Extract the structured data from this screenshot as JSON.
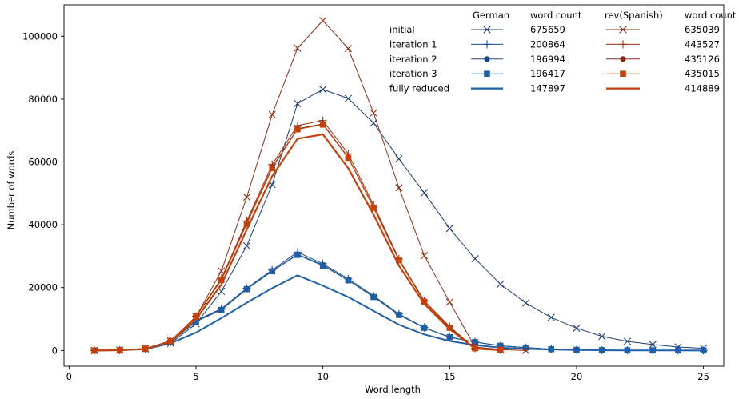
{
  "chart_data": {
    "type": "line",
    "xlabel": "Word length",
    "ylabel": "Number of words",
    "xlim": [
      -0.2,
      25.8
    ],
    "ylim": [
      -5000,
      110000
    ],
    "xticks": [
      0,
      5,
      10,
      15,
      20,
      25
    ],
    "yticks": [
      0,
      20000,
      40000,
      60000,
      80000,
      100000
    ],
    "grid": false,
    "legend": {
      "placement": "top-right",
      "headers": [
        "German",
        "word count",
        "rev(Spanish)",
        "word count"
      ],
      "rows": [
        {
          "label": "initial",
          "german_count": "675659",
          "spanish_count": "635039",
          "marker": "x"
        },
        {
          "label": "iteration 1",
          "german_count": "200864",
          "spanish_count": "443527",
          "marker": "plus"
        },
        {
          "label": "iteration 2",
          "german_count": "196994",
          "spanish_count": "435126",
          "marker": "circle"
        },
        {
          "label": "iteration 3",
          "german_count": "196417",
          "spanish_count": "435015",
          "marker": "square"
        },
        {
          "label": "fully reduced",
          "german_count": "147897",
          "spanish_count": "414889",
          "marker": "none"
        }
      ]
    },
    "colors": {
      "german_initial": "#1f3f6e",
      "german_iter1": "#1f4b85",
      "german_iter2": "#1a4a80",
      "german_iter3": "#1f5fa8",
      "german_full": "#1f5fa8",
      "spanish_initial": "#8b2e12",
      "spanish_iter1": "#9a3412",
      "spanish_iter2": "#8b2a10",
      "spanish_iter3": "#c2410c",
      "spanish_full": "#c2410c"
    },
    "series": [
      {
        "key": "german_initial",
        "marker": "x",
        "width": 1.0,
        "x": [
          1,
          2,
          3,
          4,
          5,
          6,
          7,
          8,
          9,
          10,
          11,
          12,
          13,
          14,
          15,
          16,
          17,
          18,
          19,
          20,
          21,
          22,
          23,
          24,
          25
        ],
        "y": [
          0,
          100,
          500,
          2300,
          8500,
          18800,
          33300,
          52800,
          78600,
          83100,
          80200,
          72400,
          61000,
          50200,
          38800,
          29200,
          21100,
          15100,
          10500,
          7100,
          4500,
          2900,
          1900,
          1100,
          700
        ]
      },
      {
        "key": "german_iter1",
        "marker": "plus",
        "width": 1.0,
        "x": [
          1,
          2,
          3,
          4,
          5,
          6,
          7,
          8,
          9,
          10,
          11,
          12,
          13,
          14,
          15,
          16,
          17,
          18,
          19,
          20,
          21,
          22,
          23,
          24,
          25
        ],
        "y": [
          0,
          100,
          500,
          2700,
          9500,
          13300,
          19800,
          25600,
          31300,
          27600,
          22800,
          17400,
          11600,
          7300,
          4300,
          2700,
          1500,
          900,
          400,
          200,
          100,
          50,
          30,
          20,
          10
        ]
      },
      {
        "key": "german_iter2",
        "marker": "circle",
        "width": 1.0,
        "x": [
          1,
          2,
          3,
          4,
          5,
          6,
          7,
          8,
          9,
          10,
          11,
          12,
          13,
          14,
          15,
          16,
          17,
          18,
          19,
          20,
          21,
          22,
          23,
          24,
          25
        ],
        "y": [
          0,
          100,
          500,
          2700,
          9300,
          13000,
          19600,
          25300,
          30600,
          27200,
          22400,
          17100,
          11400,
          7200,
          4200,
          2700,
          1500,
          900,
          400,
          200,
          100,
          50,
          30,
          20,
          10
        ]
      },
      {
        "key": "german_iter3",
        "marker": "square",
        "width": 1.0,
        "x": [
          1,
          2,
          3,
          4,
          5,
          6,
          7,
          8,
          9,
          10,
          11,
          12,
          13,
          14,
          15,
          16,
          17,
          18,
          19,
          20,
          21,
          22,
          23,
          24,
          25
        ],
        "y": [
          0,
          100,
          500,
          2700,
          9200,
          12900,
          19500,
          25200,
          30400,
          27000,
          22300,
          17000,
          11300,
          7200,
          4200,
          2700,
          1500,
          900,
          400,
          200,
          100,
          50,
          30,
          20,
          10
        ]
      },
      {
        "key": "german_full",
        "marker": "none",
        "width": 2.0,
        "x": [
          1,
          2,
          3,
          4,
          5,
          6,
          7,
          8,
          9,
          10,
          11,
          12,
          13,
          14,
          15,
          16,
          17,
          18,
          19,
          20,
          21,
          22,
          23,
          24,
          25
        ],
        "y": [
          0,
          100,
          400,
          2300,
          5700,
          10300,
          15200,
          19800,
          23900,
          20600,
          17000,
          12600,
          8200,
          5100,
          3000,
          1700,
          900,
          500,
          300,
          150,
          80,
          40,
          20,
          10,
          5
        ]
      },
      {
        "key": "spanish_initial",
        "marker": "x",
        "width": 1.0,
        "x": [
          1,
          2,
          3,
          4,
          5,
          6,
          7,
          8,
          9,
          10,
          11,
          12,
          13,
          14,
          15,
          16,
          17,
          18
        ],
        "y": [
          0,
          100,
          600,
          3100,
          10700,
          25300,
          48800,
          75100,
          96200,
          105000,
          96100,
          75600,
          51800,
          30200,
          15400,
          1100,
          300,
          0
        ]
      },
      {
        "key": "spanish_iter1",
        "marker": "plus",
        "width": 1.0,
        "x": [
          1,
          2,
          3,
          4,
          5,
          6,
          7,
          8,
          9,
          10,
          11,
          12,
          13,
          14,
          15,
          16,
          17
        ],
        "y": [
          0,
          100,
          600,
          3000,
          10900,
          22900,
          41200,
          59200,
          71600,
          73200,
          62600,
          46300,
          29100,
          15800,
          7600,
          700,
          200
        ]
      },
      {
        "key": "spanish_iter2",
        "marker": "circle",
        "width": 1.0,
        "x": [
          1,
          2,
          3,
          4,
          5,
          6,
          7,
          8,
          9,
          10,
          11,
          12,
          13,
          14,
          15,
          16,
          17
        ],
        "y": [
          0,
          100,
          600,
          3000,
          10800,
          22500,
          40600,
          58300,
          70600,
          72100,
          61500,
          45600,
          28800,
          15600,
          7300,
          700,
          200
        ]
      },
      {
        "key": "spanish_iter3",
        "marker": "square",
        "width": 1.0,
        "x": [
          1,
          2,
          3,
          4,
          5,
          6,
          7,
          8,
          9,
          10,
          11,
          12,
          13,
          14,
          15,
          16,
          17
        ],
        "y": [
          0,
          100,
          600,
          3000,
          10800,
          22400,
          40300,
          58000,
          70400,
          71900,
          61300,
          45400,
          28700,
          15500,
          7200,
          700,
          200
        ]
      },
      {
        "key": "spanish_full",
        "marker": "none",
        "width": 2.2,
        "x": [
          1,
          2,
          3,
          4,
          5,
          6,
          7,
          8,
          9,
          10,
          11,
          12,
          13,
          14,
          15,
          16,
          17
        ],
        "y": [
          0,
          100,
          500,
          2800,
          10000,
          21000,
          38500,
          55500,
          67400,
          68800,
          58000,
          43200,
          27000,
          14800,
          6800,
          600,
          100
        ]
      }
    ]
  }
}
